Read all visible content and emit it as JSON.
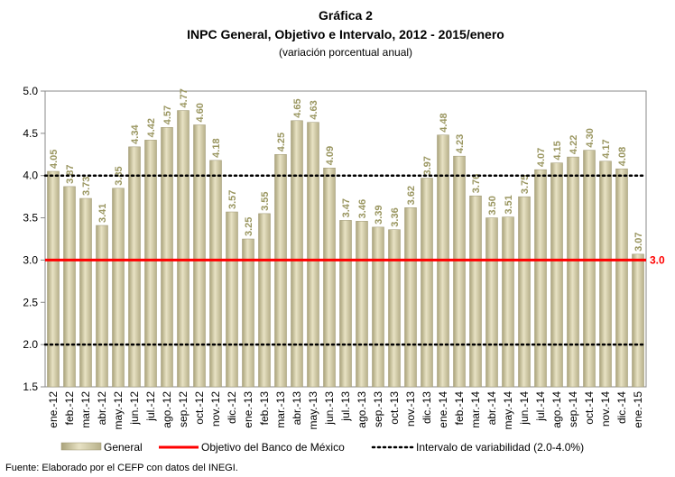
{
  "chart_data": {
    "type": "bar",
    "title": "Gráfica 2",
    "subtitle": "INPC General, Objetivo e Intervalo, 2012 - 2015/enero",
    "subtitle2": "(variación porcentual anual)",
    "source": "Fuente: Elaborado por el CEFP con datos del INEGI.",
    "categories": [
      "ene.-12",
      "feb.-12",
      "mar.-12",
      "abr.-12",
      "may.-12",
      "jun.-12",
      "jul.-12",
      "ago.-12",
      "sep.-12",
      "oct.-12",
      "nov.-12",
      "dic.-12",
      "ene.-13",
      "feb.-13",
      "mar.-13",
      "abr.-13",
      "may.-13",
      "jun.-13",
      "jul.-13",
      "ago.-13",
      "sep.-13",
      "oct.-13",
      "nov.-13",
      "dic.-13",
      "ene.-14",
      "feb.-14",
      "mar.-14",
      "abr.-14",
      "may.-14",
      "jun.-14",
      "jul.-14",
      "ago.-14",
      "sep.-14",
      "oct.-14",
      "nov.-14",
      "dic.-14",
      "ene.-15"
    ],
    "series": [
      {
        "name": "General",
        "color": "#c8c09a",
        "values": [
          4.05,
          3.87,
          3.73,
          3.41,
          3.85,
          4.34,
          4.42,
          4.57,
          4.77,
          4.6,
          4.18,
          3.57,
          3.25,
          3.55,
          4.25,
          4.65,
          4.63,
          4.09,
          3.47,
          3.46,
          3.39,
          3.36,
          3.62,
          3.97,
          4.48,
          4.23,
          3.76,
          3.5,
          3.51,
          3.75,
          4.07,
          4.15,
          4.22,
          4.3,
          4.17,
          4.08,
          3.07
        ],
        "value_labels": [
          "4.05",
          "3.87",
          "3.73",
          "3.41",
          "3.85",
          "4.34",
          "4.42",
          "4.57",
          "4.77",
          "4.60",
          "4.18",
          "3.57",
          "3.25",
          "3.55",
          "4.25",
          "4.65",
          "4.63",
          "4.09",
          "3.47",
          "3.46",
          "3.39",
          "3.36",
          "3.62",
          "3.97",
          "4.48",
          "4.23",
          "3.76",
          "3.50",
          "3.51",
          "3.75",
          "4.07",
          "4.15",
          "4.22",
          "4.30",
          "4.17",
          "4.08",
          "3.07"
        ]
      }
    ],
    "reference_lines": [
      {
        "name": "Objetivo del Banco de México",
        "value": 3,
        "label": "3.0",
        "color": "#ff0000",
        "style": "solid"
      },
      {
        "name": "Intervalo de variabilidad (2.0-4.0%)",
        "values": [
          2,
          4
        ],
        "color": "#000000",
        "style": "dotted"
      }
    ],
    "ylim": [
      1.5,
      5
    ],
    "yticks": [
      {
        "value": 1.5,
        "label": "1.5"
      },
      {
        "value": 2,
        "label": "2.0"
      },
      {
        "value": 2.5,
        "label": "2.5"
      },
      {
        "value": 3,
        "label": "3.0"
      },
      {
        "value": 3.5,
        "label": "3.5"
      },
      {
        "value": 4,
        "label": "4.0"
      },
      {
        "value": 4.5,
        "label": "4.5"
      },
      {
        "value": 5,
        "label": "5.0"
      }
    ],
    "legend": "bottom"
  }
}
